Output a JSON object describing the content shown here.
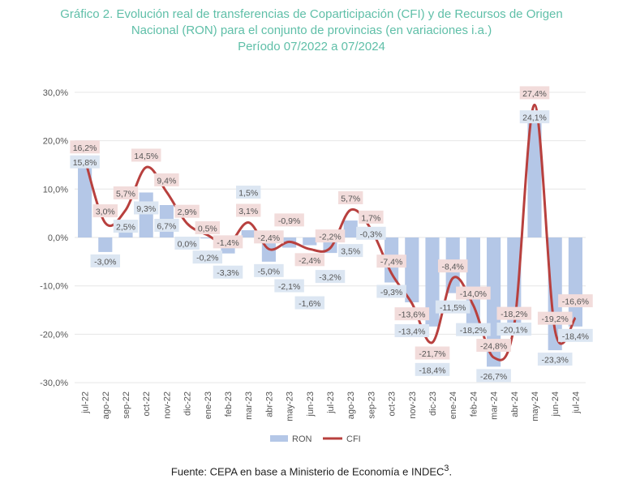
{
  "chart_data": {
    "type": "bar+line",
    "title": [
      "Gráfico 2. Evolución real de transferencias de Coparticipación (CFI) y de Recursos de Origen",
      "Nacional (RON) para el conjunto de provincias (en variaciones i.a.)",
      "Período 07/2022 a 07/2024"
    ],
    "categories": [
      "jul-22",
      "ago-22",
      "sep-22",
      "oct-22",
      "nov-22",
      "dic-22",
      "ene-23",
      "feb-23",
      "mar-23",
      "abr-23",
      "may-23",
      "jun-23",
      "jul-23",
      "ago-23",
      "sep-23",
      "oct-23",
      "nov-23",
      "dic-23",
      "ene-24",
      "feb-24",
      "mar-24",
      "abr-24",
      "may-24",
      "jun-24",
      "jul-24"
    ],
    "series": [
      {
        "name": "RON",
        "type": "bar",
        "color": "#b4c7e7",
        "label_bg": "#dce6f2",
        "values": [
          15.8,
          -3.0,
          2.5,
          9.3,
          6.7,
          0.0,
          -0.2,
          -3.3,
          1.5,
          -5.0,
          -2.1,
          -1.6,
          -3.2,
          3.5,
          -0.3,
          -9.3,
          -13.4,
          -18.4,
          -11.5,
          -18.2,
          -26.7,
          -20.1,
          24.1,
          -23.3,
          -18.4
        ]
      },
      {
        "name": "CFI",
        "type": "line",
        "color": "#b8403e",
        "label_bg": "#f2dcdb",
        "values": [
          16.2,
          3.0,
          5.7,
          14.5,
          9.4,
          2.9,
          0.5,
          -1.4,
          3.1,
          -2.4,
          -0.9,
          -2.4,
          -2.2,
          5.7,
          1.7,
          -7.4,
          -13.6,
          -21.7,
          -8.4,
          -14.0,
          -24.8,
          -18.2,
          27.4,
          -19.2,
          -16.6
        ]
      }
    ],
    "yticks": [
      "30,0%",
      "20,0%",
      "10,0%",
      "0,0%",
      "-10,0%",
      "-20,0%",
      "-30,0%"
    ],
    "ylim": [
      -30,
      30
    ],
    "grid": true,
    "legend": "bottom"
  },
  "footer": "Fuente: CEPA en base a Ministerio de Economía e INDEC",
  "footer_sup": "3"
}
